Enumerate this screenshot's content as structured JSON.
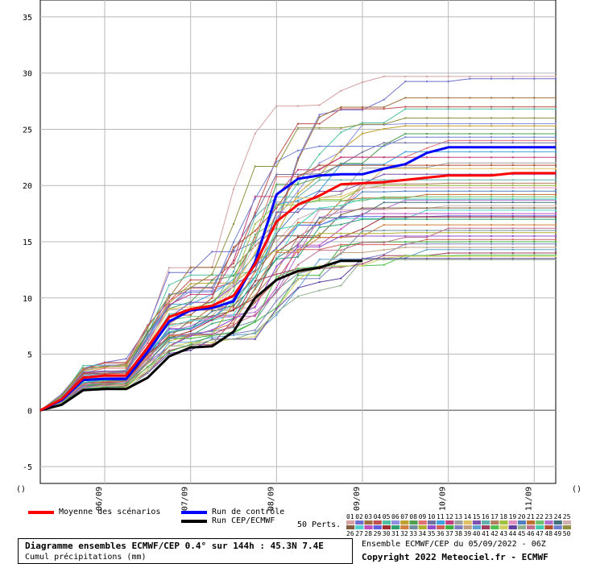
{
  "chart_data": {
    "type": "line",
    "title": "Diagramme ensembles ECMWF/CEP 0.4° sur 144h : 45.3N 7.4E",
    "subtitle": "Cumul précipitations (mm)",
    "ylim": [
      -6.5,
      36.5
    ],
    "y_ticks": [
      -5,
      0,
      5,
      10,
      15,
      20,
      25,
      30,
      35
    ],
    "xlim": [
      0,
      144
    ],
    "x_ticks": [
      {
        "x": 18,
        "label": "06/09"
      },
      {
        "x": 42,
        "label": "07/09"
      },
      {
        "x": 66,
        "label": "08/09"
      },
      {
        "x": 90,
        "label": "09/09"
      },
      {
        "x": 114,
        "label": "10/09"
      },
      {
        "x": 138,
        "label": "11/09"
      }
    ],
    "x_edge_labels": [
      "()",
      "()"
    ],
    "grid": true,
    "mean": {
      "name": "Moyenne des scénarios",
      "color": "#ff0000",
      "x": [
        0,
        6,
        12,
        18,
        24,
        30,
        36,
        42,
        48,
        54,
        60,
        66,
        72,
        78,
        84,
        90,
        96,
        102,
        108,
        114,
        120,
        126,
        132,
        138,
        144
      ],
      "y": [
        0,
        1.0,
        2.9,
        3.1,
        3.1,
        5.6,
        8.3,
        9.0,
        9.3,
        10.2,
        13.0,
        16.8,
        18.3,
        19.1,
        20.1,
        20.2,
        20.3,
        20.5,
        20.7,
        20.9,
        20.9,
        20.9,
        21.1,
        21.1,
        21.1
      ]
    },
    "control": {
      "name": "Run de contrôle",
      "color": "#0000ff",
      "x": [
        0,
        6,
        12,
        18,
        24,
        30,
        36,
        42,
        48,
        54,
        60,
        66,
        72,
        78,
        84,
        90,
        96,
        102,
        108,
        114,
        120,
        126,
        132,
        138,
        144
      ],
      "y": [
        0,
        0.9,
        2.7,
        2.8,
        2.8,
        5.2,
        7.9,
        8.9,
        9.1,
        9.7,
        13.2,
        19.2,
        20.6,
        20.9,
        21.0,
        21.0,
        21.5,
        21.9,
        22.9,
        23.4,
        23.4,
        23.4,
        23.4,
        23.4,
        23.4
      ]
    },
    "operational": {
      "name": "Run CEP/ECMWF",
      "color": "#000000",
      "x": [
        0,
        6,
        12,
        18,
        24,
        30,
        36,
        42,
        48,
        54,
        60,
        66,
        72,
        78,
        84,
        90
      ],
      "y": [
        0,
        0.5,
        1.8,
        1.9,
        1.9,
        2.9,
        4.8,
        5.6,
        5.7,
        7.0,
        10.0,
        11.6,
        12.4,
        12.7,
        13.3,
        13.3
      ]
    },
    "perturbation_finals": [
      29.7,
      29.5,
      27.8,
      27.0,
      26.8,
      25.5,
      25.3,
      24.6,
      24.0,
      23.8,
      23.0,
      22.5,
      22.0,
      21.5,
      21.0,
      20.5,
      20.2,
      20.0,
      19.8,
      19.5,
      19.2,
      19.0,
      18.7,
      18.5,
      18.2,
      18.0,
      17.8,
      17.5,
      17.3,
      17.2,
      17.0,
      16.5,
      16.0,
      15.8,
      15.5,
      15.2,
      15.0,
      14.8,
      14.5,
      14.3,
      14.0,
      13.8,
      13.7,
      13.5,
      13.4,
      16.2,
      18.8,
      21.8,
      24.3,
      26.0
    ],
    "perturbation_colors": [
      "#d4a0a0",
      "#7070d0",
      "#a07040",
      "#c05050",
      "#50c0a0",
      "#9090e0",
      "#c0a030",
      "#50a050",
      "#e07070",
      "#7070a0",
      "#40a0e0",
      "#c04080",
      "#a0a0a0",
      "#e0c060",
      "#8050b0",
      "#60b0b0",
      "#b08060",
      "#a0c040",
      "#e090c0",
      "#5080c0",
      "#c07030",
      "#70c070",
      "#b070d0",
      "#407080",
      "#d0b0b0",
      "#806040",
      "#50d0d0",
      "#c050c0",
      "#6060e0",
      "#a03030",
      "#30a070",
      "#d08040",
      "#7090a0",
      "#b0b030",
      "#9050d0",
      "#d06060",
      "#40b040",
      "#8080c0",
      "#c0a080",
      "#60a0d0",
      "#a04060",
      "#50c050",
      "#d0d060",
      "#6040a0",
      "#90b090",
      "#c07090",
      "#40d0b0",
      "#b05030",
      "#7080d0",
      "#909040"
    ],
    "legend": {
      "mean_label": "Moyenne des scénarios",
      "control_label": "Run de contrôle",
      "operational_label": "Run CEP/ECMWF",
      "perts_label": "50 Perts.",
      "pert_numbers_top": [
        "01",
        "02",
        "03",
        "04",
        "05",
        "06",
        "07",
        "08",
        "09",
        "10",
        "11",
        "12",
        "13",
        "14",
        "15",
        "16",
        "17",
        "18",
        "19",
        "20",
        "21",
        "22",
        "23",
        "24",
        "25"
      ],
      "pert_numbers_bottom": [
        "26",
        "27",
        "28",
        "29",
        "30",
        "31",
        "32",
        "33",
        "34",
        "35",
        "36",
        "37",
        "38",
        "39",
        "40",
        "41",
        "42",
        "43",
        "44",
        "45",
        "46",
        "47",
        "48",
        "49",
        "50"
      ]
    }
  },
  "footer": {
    "title": "Diagramme ensembles ECMWF/CEP 0.4° sur 144h : 45.3N 7.4E",
    "subtitle": "Cumul précipitations (mm)",
    "run_info": "Ensemble ECMWF/CEP du 05/09/2022 - 06Z",
    "copyright": "Copyright 2022 Meteociel.fr - ECMWF"
  }
}
